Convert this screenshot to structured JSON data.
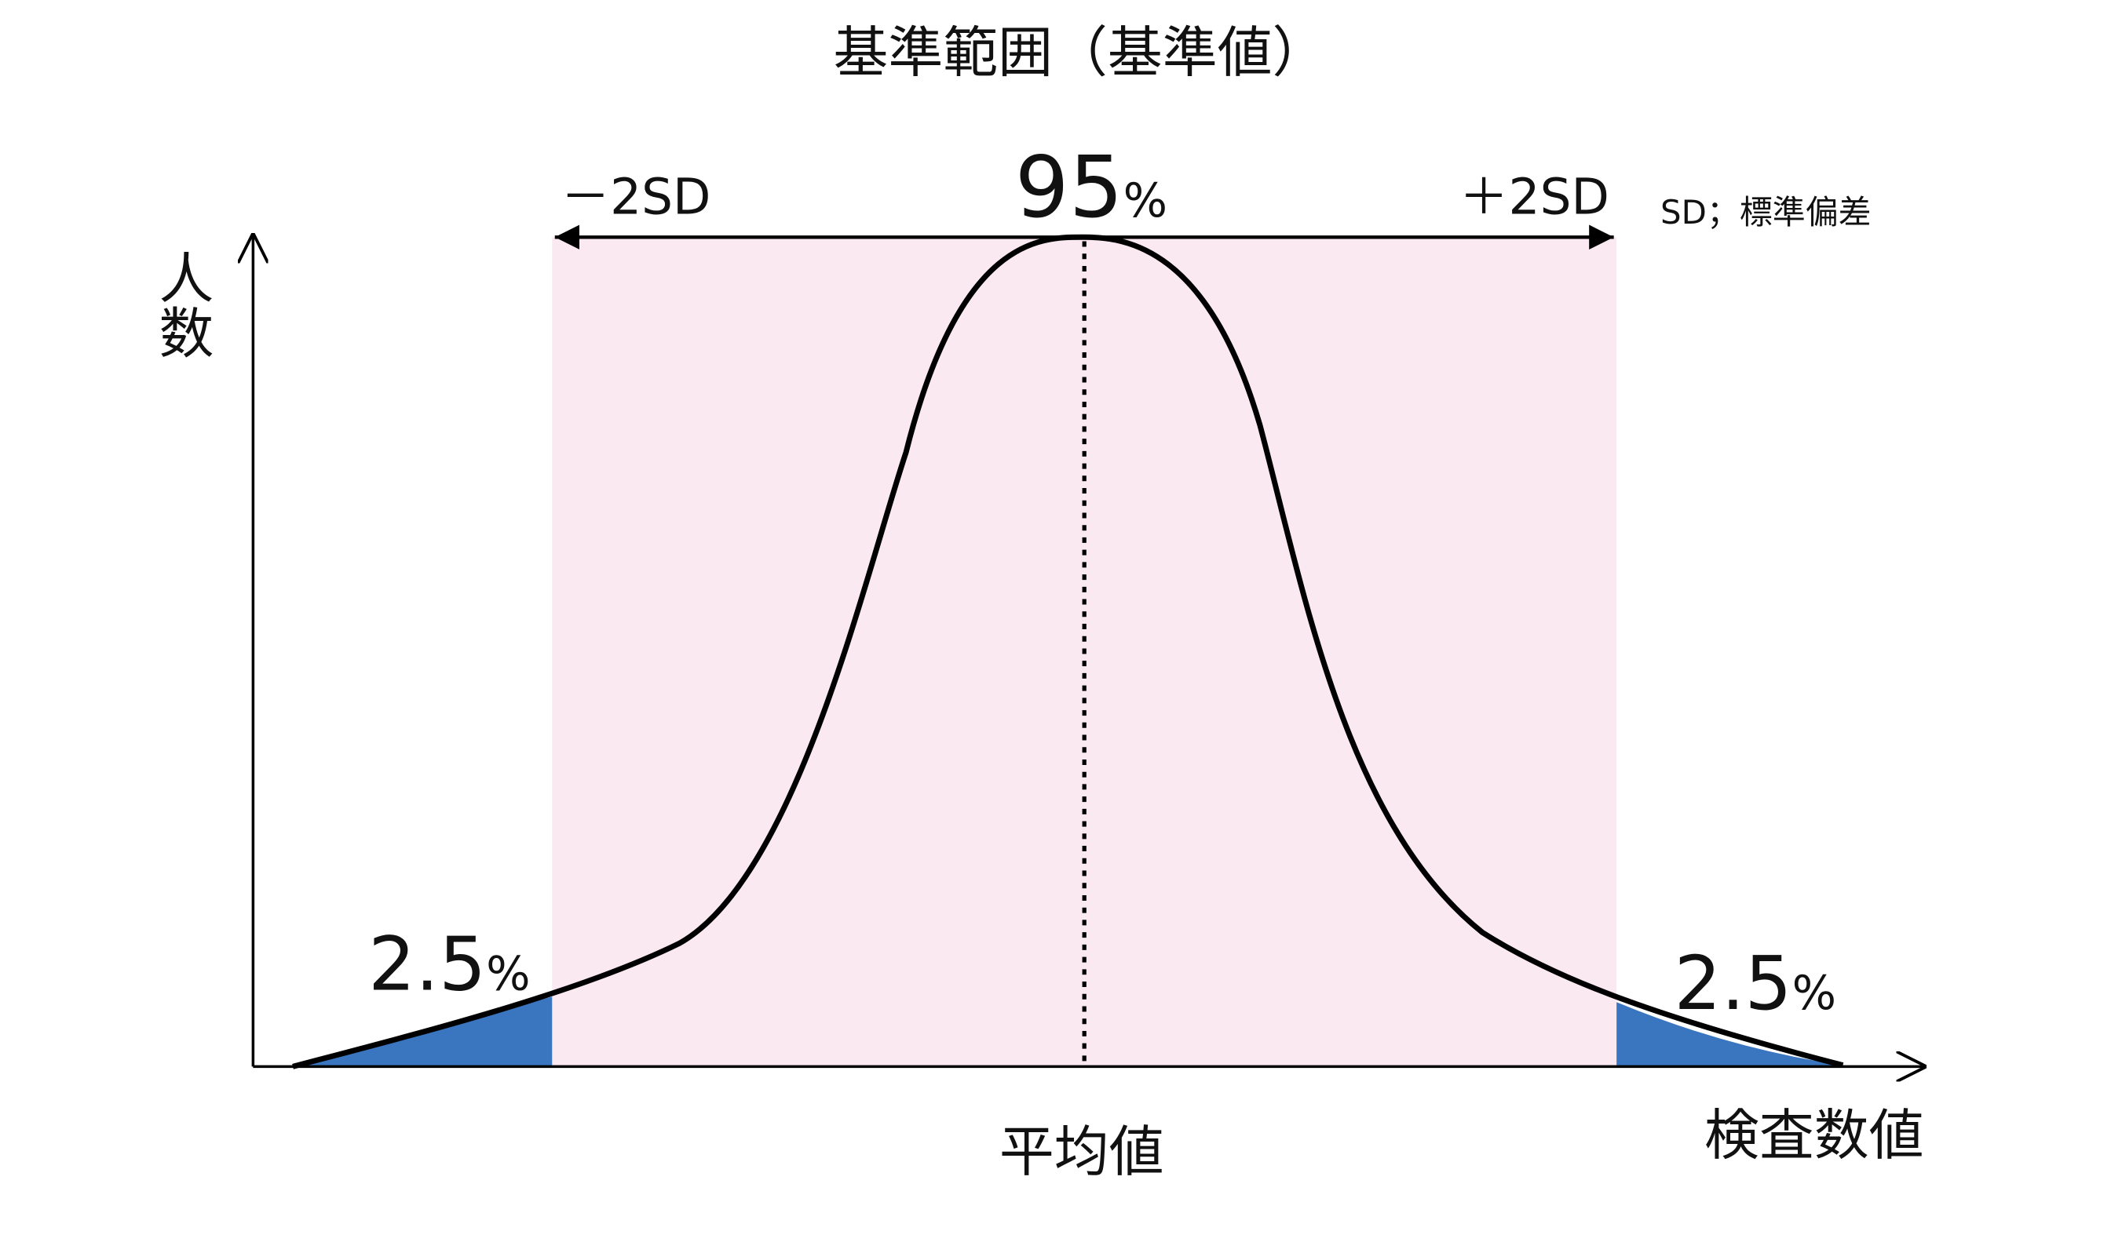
{
  "title": "基準範囲（基準値）",
  "range_arrow": {
    "left_label": "－2SD",
    "right_label": "＋2SD",
    "center_value": "95",
    "center_unit": "%"
  },
  "note": "SD；標準偏差",
  "y_axis_label": "人数",
  "x_axis_label": "検査数値",
  "mean_label": "平均値",
  "left_tail": {
    "value": "2.5",
    "unit": "%"
  },
  "right_tail": {
    "value": "2.5",
    "unit": "%"
  }
}
